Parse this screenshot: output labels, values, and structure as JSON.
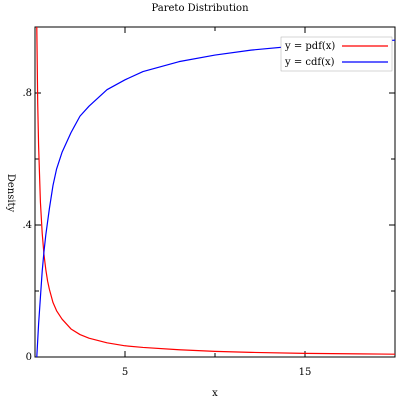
{
  "chart_data": {
    "type": "line",
    "title": "Pareto Distribution",
    "xlabel": "x",
    "ylabel": "Density",
    "xlim": [
      0,
      20
    ],
    "ylim": [
      0,
      1
    ],
    "x_ticks": [
      {
        "value": 5,
        "label": "5"
      },
      {
        "value": 15,
        "label": "15"
      }
    ],
    "y_ticks": [
      {
        "value": 0,
        "label": "0"
      },
      {
        "value": 0.4,
        "label": ".4"
      },
      {
        "value": 0.8,
        "label": ".8"
      }
    ],
    "x_minor_ticks": [
      10
    ],
    "y_minor_ticks": [
      0.2,
      0.6
    ],
    "grid": false,
    "legend": {
      "position": "top-right"
    },
    "series": [
      {
        "name": "y = pdf(x)",
        "color": "#ff0000",
        "x": [
          0.1,
          0.15,
          0.2,
          0.3,
          0.4,
          0.5,
          0.6,
          0.7,
          0.8,
          1.0,
          1.2,
          1.5,
          2.0,
          2.5,
          3.0,
          4.0,
          5.0,
          6.0,
          8.0,
          10.0,
          12.0,
          15.0,
          18.0,
          20.0
        ],
        "y": [
          1.0,
          0.77,
          0.64,
          0.47,
          0.375,
          0.31,
          0.265,
          0.23,
          0.205,
          0.165,
          0.14,
          0.115,
          0.085,
          0.068,
          0.057,
          0.043,
          0.034,
          0.029,
          0.022,
          0.017,
          0.014,
          0.011,
          0.0095,
          0.0085
        ]
      },
      {
        "name": "y = cdf(x)",
        "color": "#0000ff",
        "x": [
          0.1,
          0.2,
          0.3,
          0.4,
          0.5,
          0.6,
          0.8,
          1.0,
          1.2,
          1.5,
          2.0,
          2.5,
          3.0,
          4.0,
          5.0,
          6.0,
          8.0,
          10.0,
          12.0,
          15.0,
          18.0,
          20.0
        ],
        "y": [
          0.0,
          0.1,
          0.18,
          0.26,
          0.32,
          0.37,
          0.45,
          0.52,
          0.57,
          0.62,
          0.68,
          0.73,
          0.76,
          0.81,
          0.84,
          0.865,
          0.895,
          0.915,
          0.93,
          0.945,
          0.955,
          0.96
        ]
      }
    ]
  }
}
